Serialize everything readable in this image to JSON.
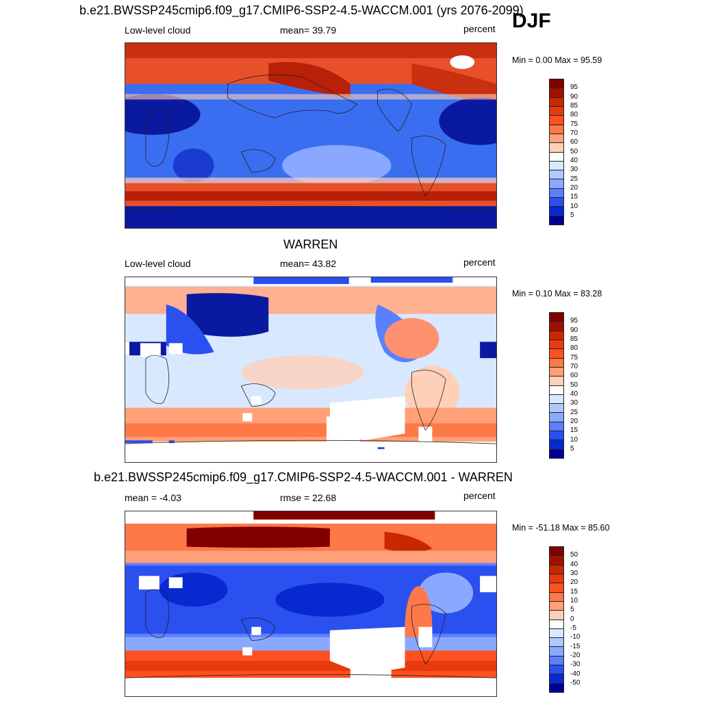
{
  "header": {
    "main_title": "b.e21.BWSSP245cmip6.f09_g17.CMIP6-SSP2-4.5-WACCM.001 (yrs 2076-2099)",
    "season": "DJF"
  },
  "panels": [
    {
      "title": "",
      "left_label": "Low-level cloud",
      "center_label": "mean=  39.79",
      "right_label": "percent",
      "minmax": "Min =   0.00 Max =  95.59",
      "colorbar_ticks": [
        "95",
        "90",
        "85",
        "80",
        "75",
        "70",
        "60",
        "50",
        "40",
        "30",
        "25",
        "20",
        "15",
        "10",
        "5"
      ]
    },
    {
      "title": "WARREN",
      "left_label": "Low-level cloud",
      "center_label": "mean=  43.82",
      "right_label": "percent",
      "minmax": "Min =   0.10 Max =  83.28",
      "colorbar_ticks": [
        "95",
        "90",
        "85",
        "80",
        "75",
        "70",
        "60",
        "50",
        "40",
        "30",
        "25",
        "20",
        "15",
        "10",
        "5"
      ]
    },
    {
      "title": "b.e21.BWSSP245cmip6.f09_g17.CMIP6-SSP2-4.5-WACCM.001 - WARREN",
      "left_label": "mean =  -4.03",
      "center_label": "rmse =  22.68",
      "right_label": "percent",
      "minmax": "Min = -51.18 Max =  85.60",
      "colorbar_ticks": [
        "50",
        "40",
        "30",
        "20",
        "15",
        "10",
        "5",
        "0",
        "-5",
        "-10",
        "-15",
        "-20",
        "-30",
        "-40",
        "-50"
      ]
    }
  ],
  "colors": {
    "colorbar_16": [
      "#800000",
      "#a01000",
      "#c82800",
      "#e83a10",
      "#ff5020",
      "#ff7848",
      "#ffa078",
      "#ffd0b8",
      "#ffffff",
      "#d8e8ff",
      "#b0c8ff",
      "#8aa8ff",
      "#5a80ff",
      "#2a50f0",
      "#0828d0",
      "#000090"
    ]
  }
}
